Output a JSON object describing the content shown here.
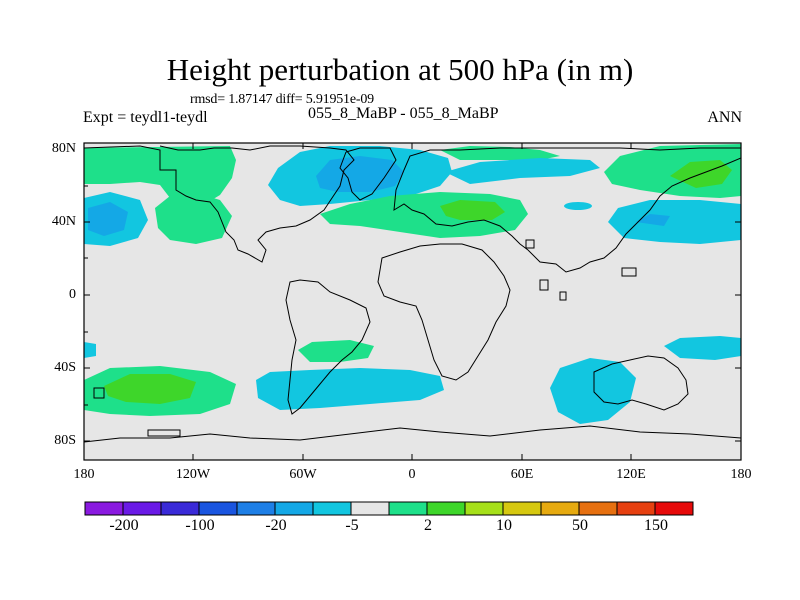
{
  "title": "Height perturbation at 500 hPa (in m)",
  "stats": "rmsd= 1.87147 diff= 5.91951e-09",
  "left_label": "Expt = teydl1-teydl",
  "center_label": "055_8_MaBP - 055_8_MaBP",
  "right_label": "ANN",
  "axes": {
    "lat_ticks": [
      "80N",
      "40N",
      "0",
      "40S",
      "80S"
    ],
    "lon_ticks": [
      "180",
      "120W",
      "60W",
      "0",
      "60E",
      "120E",
      "180"
    ]
  },
  "colorbar": {
    "colors": [
      "#8a1ae0",
      "#6a1ae6",
      "#3a2ad8",
      "#1a55e0",
      "#1e7fe6",
      "#14a8e6",
      "#12c6e0",
      "#e6e6e6",
      "#1ee08a",
      "#3ed62a",
      "#a6e01a",
      "#d6c810",
      "#e6aa10",
      "#e67010",
      "#e64010",
      "#e60a0a"
    ],
    "labels": [
      "-200",
      "-100",
      "-20",
      "-5",
      "2",
      "10",
      "50",
      "150"
    ]
  },
  "colors": {
    "background": "#e6e6e6",
    "weak_neg": "#12c6e0",
    "mid_neg": "#14a8e6",
    "weak_pos": "#1ee08a",
    "mid_pos": "#3ed62a"
  }
}
